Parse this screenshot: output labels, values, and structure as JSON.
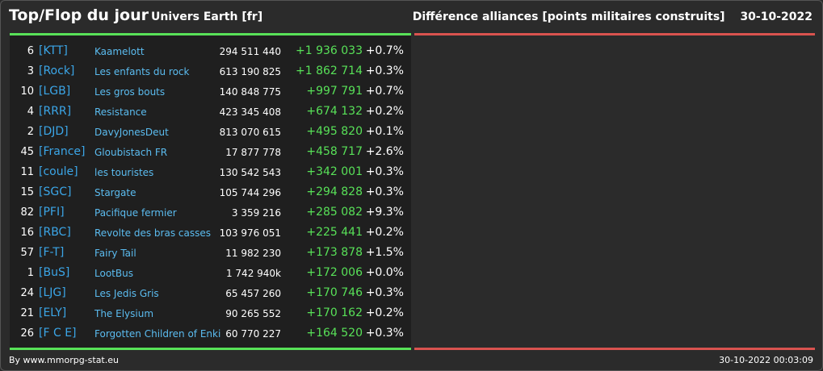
{
  "header": {
    "title": "Top/Flop du jour",
    "subtitle": "Univers Earth [fr]",
    "description": "Différence alliances [points militaires construits]",
    "date": "30-10-2022"
  },
  "rows": [
    {
      "rank": "6",
      "tag": "[KTT]",
      "name": "Kaamelott",
      "total": "294 511 440",
      "diff": "+1 936 033",
      "pct": "+0.7%"
    },
    {
      "rank": "3",
      "tag": "[Rock]",
      "name": "Les enfants du rock",
      "total": "613 190 825",
      "diff": "+1 862 714",
      "pct": "+0.3%"
    },
    {
      "rank": "10",
      "tag": "[LGB]",
      "name": "Les gros bouts",
      "total": "140 848 775",
      "diff": "+997 791",
      "pct": "+0.7%"
    },
    {
      "rank": "4",
      "tag": "[RRR]",
      "name": "Resistance",
      "total": "423 345 408",
      "diff": "+674 132",
      "pct": "+0.2%"
    },
    {
      "rank": "2",
      "tag": "[DJD]",
      "name": "DavyJonesDeut",
      "total": "813 070 615",
      "diff": "+495 820",
      "pct": "+0.1%"
    },
    {
      "rank": "45",
      "tag": "[France]",
      "name": "Gloubistach FR",
      "total": "17 877 778",
      "diff": "+458 717",
      "pct": "+2.6%"
    },
    {
      "rank": "11",
      "tag": "[coule]",
      "name": "les touristes",
      "total": "130 542 543",
      "diff": "+342 001",
      "pct": "+0.3%"
    },
    {
      "rank": "15",
      "tag": "[SGC]",
      "name": "Stargate",
      "total": "105 744 296",
      "diff": "+294 828",
      "pct": "+0.3%"
    },
    {
      "rank": "82",
      "tag": "[PFI]",
      "name": "Pacifique fermier",
      "total": "3 359 216",
      "diff": "+285 082",
      "pct": "+9.3%"
    },
    {
      "rank": "16",
      "tag": "[RBC]",
      "name": "Revolte des bras casses",
      "total": "103 976 051",
      "diff": "+225 441",
      "pct": "+0.2%"
    },
    {
      "rank": "57",
      "tag": "[F-T]",
      "name": "Fairy Tail",
      "total": "11 982 230",
      "diff": "+173 878",
      "pct": "+1.5%"
    },
    {
      "rank": "1",
      "tag": "[BuS]",
      "name": "LootBus",
      "total": "1 742 940k",
      "diff": "+172 006",
      "pct": "+0.0%"
    },
    {
      "rank": "24",
      "tag": "[LJG]",
      "name": "Les Jedis Gris",
      "total": "65 457 260",
      "diff": "+170 746",
      "pct": "+0.3%"
    },
    {
      "rank": "21",
      "tag": "[ELY]",
      "name": "The Elysium",
      "total": "90 265 552",
      "diff": "+170 162",
      "pct": "+0.2%"
    },
    {
      "rank": "26",
      "tag": "[F C E]",
      "name": "Forgotten Children of Enki",
      "total": "60 770 227",
      "diff": "+164 520",
      "pct": "+0.3%"
    }
  ],
  "footer": {
    "source": "By www.mmorpg-stat.eu",
    "timestamp": "30-10-2022 00:03:09"
  },
  "colors": {
    "positive": "#58e158",
    "negative": "#d9534f",
    "link": "#3ba6e8",
    "background": "#2b2b2b",
    "panel": "#1f1f1f"
  }
}
